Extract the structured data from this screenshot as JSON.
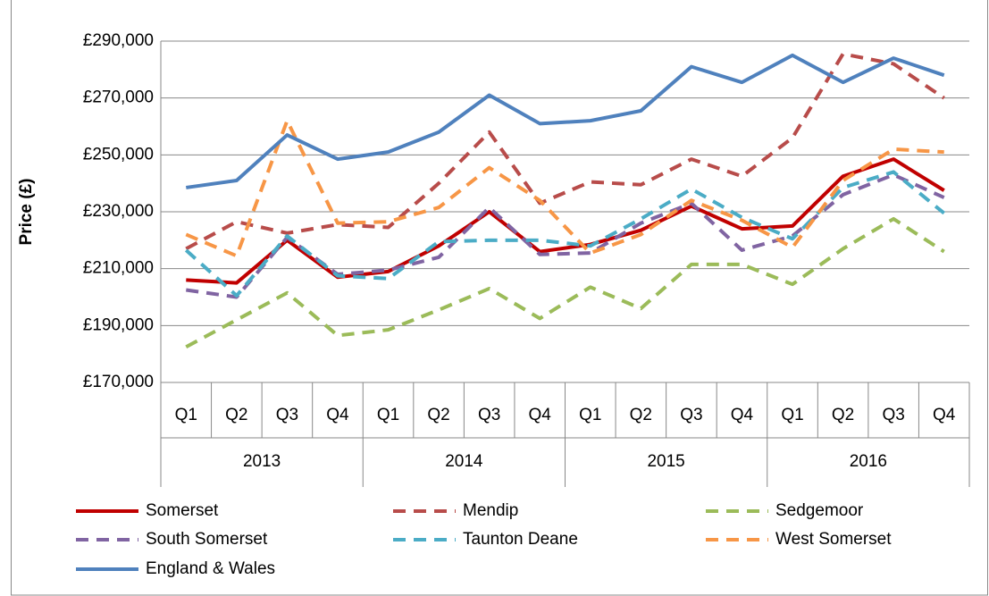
{
  "chart_data": {
    "type": "line",
    "y_axis_label": "Price (£)",
    "categories": [
      "Q1",
      "Q2",
      "Q3",
      "Q4",
      "Q1",
      "Q2",
      "Q3",
      "Q4",
      "Q1",
      "Q2",
      "Q3",
      "Q4",
      "Q1",
      "Q2",
      "Q3",
      "Q4"
    ],
    "category_groups": [
      "2013",
      "2014",
      "2015",
      "2016"
    ],
    "ylim": [
      170000,
      290000
    ],
    "yticks": [
      {
        "value": 170000,
        "label": "£170,000"
      },
      {
        "value": 190000,
        "label": "£190,000"
      },
      {
        "value": 210000,
        "label": "£210,000"
      },
      {
        "value": 230000,
        "label": "£230,000"
      },
      {
        "value": 250000,
        "label": "£250,000"
      },
      {
        "value": 270000,
        "label": "£270,000"
      },
      {
        "value": 290000,
        "label": "£290,000"
      }
    ],
    "grid": true,
    "legend": "bottom",
    "series": [
      {
        "name": "Somerset",
        "color": "#c00000",
        "style": "solid",
        "values": [
          206000,
          205000,
          220000,
          207000,
          209000,
          218000,
          230000,
          216000,
          218500,
          223500,
          232000,
          224000,
          225000,
          242500,
          248500,
          237500
        ]
      },
      {
        "name": "Mendip",
        "color": "#b84c4a",
        "style": "dashed",
        "values": [
          217000,
          226500,
          222500,
          225500,
          224500,
          240000,
          258000,
          233000,
          240500,
          239500,
          248500,
          242500,
          256000,
          285500,
          282000,
          270000
        ]
      },
      {
        "name": "Sedgemoor",
        "color": "#9bbb59",
        "style": "dashed",
        "values": [
          182500,
          192000,
          201500,
          186500,
          188500,
          195500,
          203000,
          192500,
          203500,
          196000,
          211500,
          211500,
          204500,
          217000,
          227500,
          216000
        ]
      },
      {
        "name": "South Somerset",
        "color": "#8064a2",
        "style": "dashed",
        "values": [
          202500,
          200000,
          221000,
          208000,
          209500,
          214000,
          231500,
          215000,
          215500,
          226000,
          233000,
          216500,
          221500,
          236000,
          243000,
          235000
        ]
      },
      {
        "name": "Taunton Deane",
        "color": "#4bacc6",
        "style": "dashed",
        "values": [
          216500,
          200500,
          221500,
          207500,
          206500,
          219500,
          220000,
          220000,
          218000,
          227500,
          238000,
          228000,
          220500,
          238500,
          244000,
          229500
        ]
      },
      {
        "name": "West Somerset",
        "color": "#f79646",
        "style": "dashed",
        "values": [
          222000,
          214500,
          262000,
          226000,
          226500,
          231500,
          245500,
          234000,
          215500,
          222000,
          234000,
          227000,
          217500,
          241000,
          252000,
          251000
        ]
      },
      {
        "name": "England & Wales",
        "color": "#4f81bd",
        "style": "solid",
        "values": [
          238500,
          241000,
          257000,
          248500,
          251000,
          258000,
          271000,
          261000,
          262000,
          265500,
          281000,
          275500,
          285000,
          275500,
          284000,
          278000
        ]
      }
    ]
  }
}
